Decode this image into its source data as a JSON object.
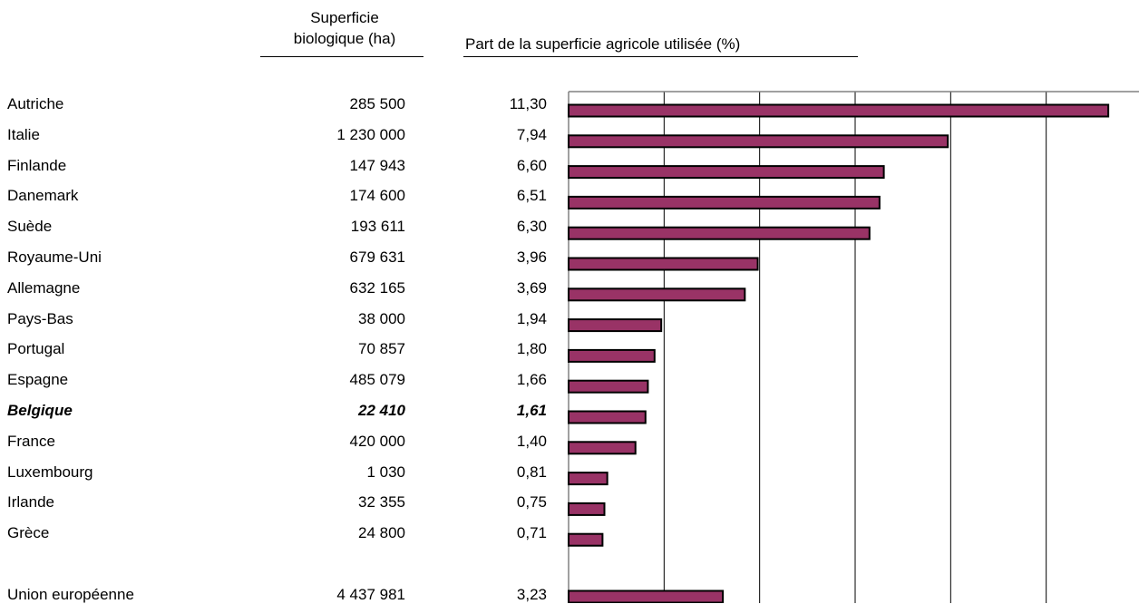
{
  "headers": {
    "area_line1": "Superficie",
    "area_line2": "biologique (ha)",
    "share": "Part de la superficie agricole utilisée (%)"
  },
  "rows": [
    {
      "country": "Autriche",
      "area": "285 500",
      "share": "11,30",
      "value": 11.3,
      "highlight": false
    },
    {
      "country": "Italie",
      "area": "1 230 000",
      "share": "7,94",
      "value": 7.94,
      "highlight": false
    },
    {
      "country": "Finlande",
      "area": "147 943",
      "share": "6,60",
      "value": 6.6,
      "highlight": false
    },
    {
      "country": "Danemark",
      "area": "174 600",
      "share": "6,51",
      "value": 6.51,
      "highlight": false
    },
    {
      "country": "Suède",
      "area": "193 611",
      "share": "6,30",
      "value": 6.3,
      "highlight": false
    },
    {
      "country": "Royaume-Uni",
      "area": "679 631",
      "share": "3,96",
      "value": 3.96,
      "highlight": false
    },
    {
      "country": "Allemagne",
      "area": "632 165",
      "share": "3,69",
      "value": 3.69,
      "highlight": false
    },
    {
      "country": "Pays-Bas",
      "area": "38 000",
      "share": "1,94",
      "value": 1.94,
      "highlight": false
    },
    {
      "country": "Portugal",
      "area": "70 857",
      "share": "1,80",
      "value": 1.8,
      "highlight": false
    },
    {
      "country": "Espagne",
      "area": "485 079",
      "share": "1,66",
      "value": 1.66,
      "highlight": false
    },
    {
      "country": "Belgique",
      "area": "22 410",
      "share": "1,61",
      "value": 1.61,
      "highlight": true
    },
    {
      "country": "France",
      "area": "420 000",
      "share": "1,40",
      "value": 1.4,
      "highlight": false
    },
    {
      "country": "Luxembourg",
      "area": "1 030",
      "share": "0,81",
      "value": 0.81,
      "highlight": false
    },
    {
      "country": "Irlande",
      "area": "32 355",
      "share": "0,75",
      "value": 0.75,
      "highlight": false
    },
    {
      "country": "Grèce",
      "area": "24 800",
      "share": "0,71",
      "value": 0.71,
      "highlight": false
    }
  ],
  "total": {
    "country": "Union européenne",
    "area": "4 437 981",
    "share": "3,23",
    "value": 3.23
  },
  "chart_data": {
    "type": "bar",
    "orientation": "horizontal",
    "title": "",
    "xlabel": "",
    "ylabel": "",
    "categories": [
      "Autriche",
      "Italie",
      "Finlande",
      "Danemark",
      "Suède",
      "Royaume-Uni",
      "Allemagne",
      "Pays-Bas",
      "Portugal",
      "Espagne",
      "Belgique",
      "France",
      "Luxembourg",
      "Irlande",
      "Grèce",
      "Union européenne"
    ],
    "values": [
      11.3,
      7.94,
      6.6,
      6.51,
      6.3,
      3.96,
      3.69,
      1.94,
      1.8,
      1.66,
      1.61,
      1.4,
      0.81,
      0.75,
      0.71,
      3.23
    ],
    "xlim": [
      0,
      12
    ],
    "grid_step": 2,
    "grid": true,
    "legend": "none",
    "bar_color": "#993366",
    "bar_border": "#000000"
  }
}
